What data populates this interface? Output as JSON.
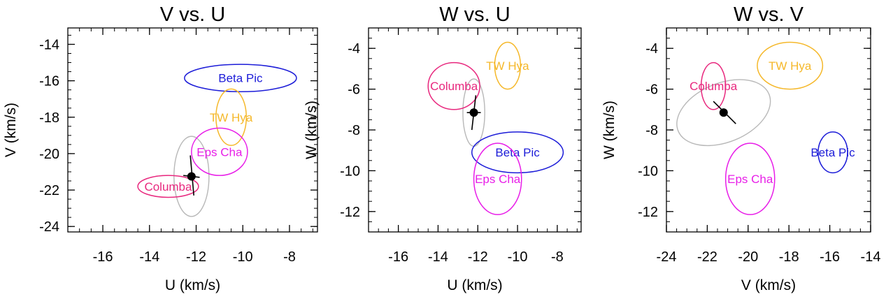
{
  "chart_data": [
    {
      "type": "scatter",
      "title": "V vs. U",
      "xlabel": "U (km/s)",
      "ylabel": "V (km/s)",
      "xlim": [
        -17.5,
        -6.8
      ],
      "ylim": [
        -24.3,
        -13.1
      ],
      "xticks": [
        -16,
        -14,
        -12,
        -10,
        -8
      ],
      "yticks": [
        -24,
        -22,
        -20,
        -18,
        -16,
        -14
      ],
      "groups": [
        {
          "name": "Beta Pic",
          "color": "#1c1cd8",
          "center": [
            -10.1,
            -15.85
          ],
          "radii": [
            2.4,
            0.75
          ]
        },
        {
          "name": "TW Hya",
          "color": "#f5b82a",
          "center": [
            -10.5,
            -18.0
          ],
          "radii": [
            0.65,
            1.55
          ]
        },
        {
          "name": "Eps Cha",
          "color": "#e81ee8",
          "center": [
            -11.0,
            -19.9
          ],
          "radii": [
            1.2,
            1.3
          ]
        },
        {
          "name": "Columba",
          "color": "#e8287e",
          "center": [
            -13.2,
            -21.8
          ],
          "radii": [
            1.3,
            0.6
          ]
        }
      ],
      "target": {
        "x": -12.2,
        "y": -21.25,
        "color": "#000000",
        "err_a": [
          [
            -12.25,
            -20.1
          ],
          [
            -12.1,
            -22.3
          ]
        ],
        "err_b": [
          [
            -12.55,
            -21.2
          ],
          [
            -11.85,
            -21.3
          ]
        ]
      },
      "target_ellipse": {
        "color": "#b8b8b8",
        "center": [
          -12.2,
          -21.25
        ],
        "radii": [
          0.75,
          2.2
        ],
        "rotation": 0
      }
    },
    {
      "type": "scatter",
      "title": "W vs. U",
      "xlabel": "U (km/s)",
      "ylabel": "W (km/s)",
      "xlim": [
        -17.5,
        -6.8
      ],
      "ylim": [
        -13.0,
        -3.0
      ],
      "xticks": [
        -16,
        -14,
        -12,
        -10,
        -8
      ],
      "yticks": [
        -12,
        -10,
        -8,
        -6,
        -4
      ],
      "groups": [
        {
          "name": "TW Hya",
          "color": "#f5b82a",
          "center": [
            -10.5,
            -4.85
          ],
          "radii": [
            0.65,
            1.15
          ]
        },
        {
          "name": "Columba",
          "color": "#e8287e",
          "center": [
            -13.2,
            -5.85
          ],
          "radii": [
            1.3,
            1.15
          ]
        },
        {
          "name": "Beta Pic",
          "color": "#1c1cd8",
          "center": [
            -10.0,
            -9.1
          ],
          "radii": [
            2.3,
            1.0
          ]
        },
        {
          "name": "Eps Cha",
          "color": "#e81ee8",
          "center": [
            -11.0,
            -10.4
          ],
          "radii": [
            1.2,
            1.75
          ]
        }
      ],
      "target": {
        "x": -12.2,
        "y": -7.15,
        "color": "#000000",
        "err_a": [
          [
            -12.1,
            -6.3
          ],
          [
            -12.3,
            -8.0
          ]
        ],
        "err_b": [
          [
            -12.55,
            -7.15
          ],
          [
            -11.85,
            -7.15
          ]
        ]
      },
      "target_ellipse": {
        "color": "#b8b8b8",
        "center": [
          -12.2,
          -7.15
        ],
        "radii": [
          0.55,
          1.65
        ],
        "rotation": 0
      }
    },
    {
      "type": "scatter",
      "title": "W vs. V",
      "xlabel": "V (km/s)",
      "ylabel": "W (km/s)",
      "xlim": [
        -24.0,
        -14.0
      ],
      "ylim": [
        -13.0,
        -3.0
      ],
      "xticks": [
        -24,
        -22,
        -20,
        -18,
        -16,
        -14
      ],
      "yticks": [
        -12,
        -10,
        -8,
        -6,
        -4
      ],
      "groups": [
        {
          "name": "TW Hya",
          "color": "#f5b82a",
          "center": [
            -17.95,
            -4.85
          ],
          "radii": [
            1.6,
            1.15
          ]
        },
        {
          "name": "Columba",
          "color": "#e8287e",
          "center": [
            -21.7,
            -5.85
          ],
          "radii": [
            0.6,
            1.15
          ]
        },
        {
          "name": "Beta Pic",
          "color": "#1c1cd8",
          "center": [
            -15.85,
            -9.1
          ],
          "radii": [
            0.72,
            1.0
          ]
        },
        {
          "name": "Eps Cha",
          "color": "#e81ee8",
          "center": [
            -19.9,
            -10.4
          ],
          "radii": [
            1.2,
            1.75
          ]
        }
      ],
      "target": {
        "x": -21.2,
        "y": -7.15,
        "color": "#000000",
        "err_a": [
          [
            -21.7,
            -6.6
          ],
          [
            -20.6,
            -7.7
          ]
        ],
        "err_b": [
          [
            -21.25,
            -7.05
          ],
          [
            -21.15,
            -7.25
          ]
        ]
      },
      "target_ellipse": {
        "color": "#b8b8b8",
        "center": [
          -21.2,
          -7.15
        ],
        "radii": [
          2.4,
          1.45
        ],
        "rotation": -22
      }
    }
  ]
}
